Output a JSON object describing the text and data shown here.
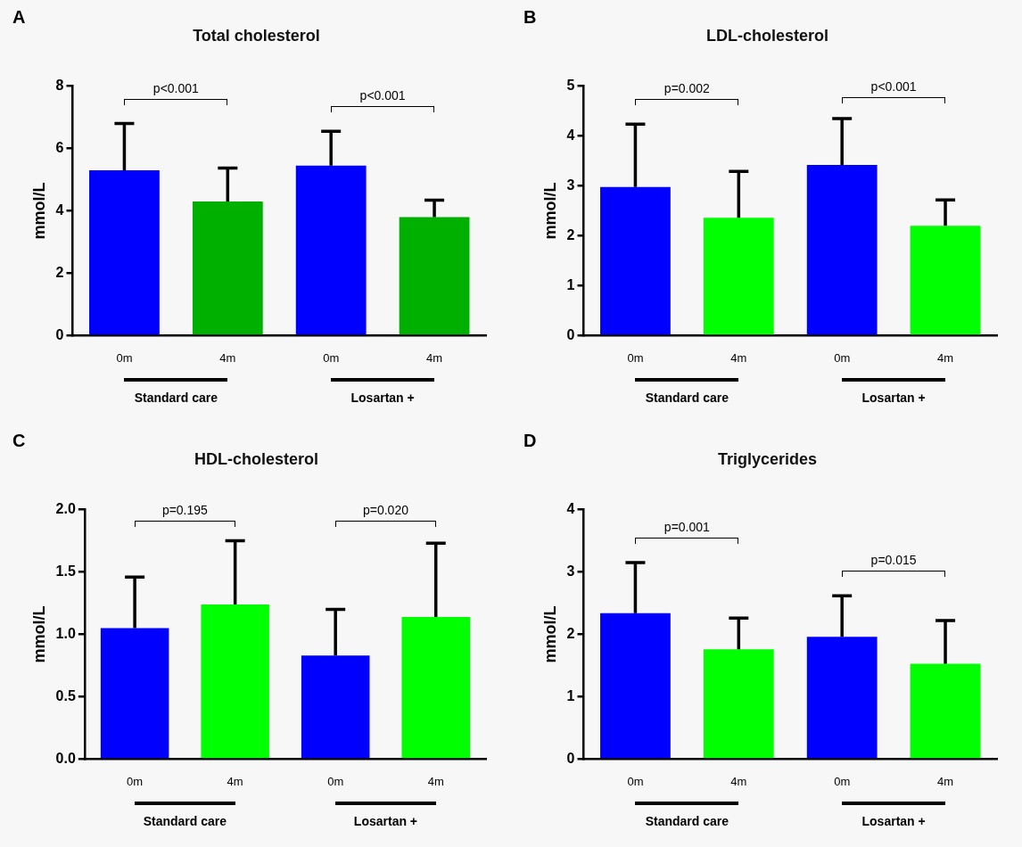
{
  "chart_data": [
    {
      "type": "bar",
      "title": "Total cholesterol",
      "ylabel": "mmol/L",
      "categories": [
        "0m",
        "4m",
        "0m",
        "4m"
      ],
      "values": [
        5.3,
        4.3,
        5.45,
        3.8
      ],
      "colors": [
        "#0000ff",
        "#00b000",
        "#0000ff",
        "#00b000"
      ],
      "errors": [
        [
          5.3,
          6.8
        ],
        [
          4.3,
          5.37
        ],
        [
          5.45,
          6.55
        ],
        [
          3.8,
          4.34
        ]
      ],
      "ylim": [
        0,
        8
      ],
      "yticks": [
        0,
        2,
        4,
        6,
        8
      ],
      "annotations": [
        "A",
        "p<0.001",
        "p<0.001",
        "Standard care",
        "Losartan +"
      ]
    },
    {
      "type": "bar",
      "title": "LDL-cholesterol",
      "ylabel": "mmol/L",
      "categories": [
        "0m",
        "4m",
        "0m",
        "4m"
      ],
      "values": [
        2.98,
        2.36,
        3.42,
        2.2
      ],
      "colors": [
        "#0000ff",
        "#00ff00",
        "#0000ff",
        "#00ff00"
      ],
      "errors": [
        [
          2.98,
          4.24
        ],
        [
          2.36,
          3.29
        ],
        [
          3.42,
          4.35
        ],
        [
          2.2,
          2.72
        ]
      ],
      "ylim": [
        0,
        5
      ],
      "yticks": [
        0,
        1,
        2,
        3,
        4,
        5
      ],
      "annotations": [
        "B",
        "p=0.002",
        "p<0.001",
        "Standard care",
        "Losartan +"
      ]
    },
    {
      "type": "bar",
      "title": "HDL-cholesterol",
      "ylabel": "mmol/L",
      "categories": [
        "0m",
        "4m",
        "0m",
        "4m"
      ],
      "values": [
        1.05,
        1.24,
        0.83,
        1.14
      ],
      "colors": [
        "#0000ff",
        "#00ff00",
        "#0000ff",
        "#00ff00"
      ],
      "errors": [
        [
          1.05,
          1.46
        ],
        [
          1.24,
          1.75
        ],
        [
          0.83,
          1.2
        ],
        [
          1.14,
          1.73
        ]
      ],
      "ylim": [
        0,
        2
      ],
      "yticks": [
        {
          "value": 0,
          "label": "0.0"
        },
        0.5,
        {
          "value": 1,
          "label": "1.0"
        },
        1.5,
        {
          "value": 2,
          "label": "2.0"
        }
      ],
      "annotations": [
        "C",
        "p=0.195",
        "p=0.020",
        "Standard care",
        "Losartan +"
      ]
    },
    {
      "type": "bar",
      "title": "Triglycerides",
      "ylabel": "mmol/L",
      "categories": [
        "0m",
        "4m",
        "0m",
        "4m"
      ],
      "values": [
        2.34,
        1.76,
        1.96,
        1.53
      ],
      "colors": [
        "#0000ff",
        "#00ff00",
        "#0000ff",
        "#00ff00"
      ],
      "errors": [
        [
          2.34,
          3.15
        ],
        [
          1.76,
          2.26
        ],
        [
          1.96,
          2.62
        ],
        [
          1.53,
          2.22
        ]
      ],
      "ylim": [
        0,
        4
      ],
      "yticks": [
        0,
        1,
        2,
        3,
        4
      ],
      "annotations": [
        "D",
        "p=0.001",
        "p=0.015",
        "Standard care",
        "Losartan +"
      ]
    }
  ]
}
